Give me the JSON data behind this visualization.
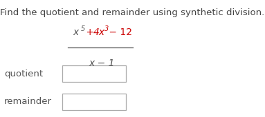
{
  "title": "Find the quotient and remainder using synthetic division.",
  "title_fontsize": 9.5,
  "title_color": "#444444",
  "numer_color_x": "#555555",
  "numer_color_red": "#cc0000",
  "denom_color": "#555555",
  "fraction_line_color": "#555555",
  "box_edge_color": "#aaaaaa",
  "label_color": "#555555",
  "label_fontsize": 9.5,
  "background_color": "#ffffff",
  "fig_width": 3.83,
  "fig_height": 1.7,
  "dpi": 100
}
